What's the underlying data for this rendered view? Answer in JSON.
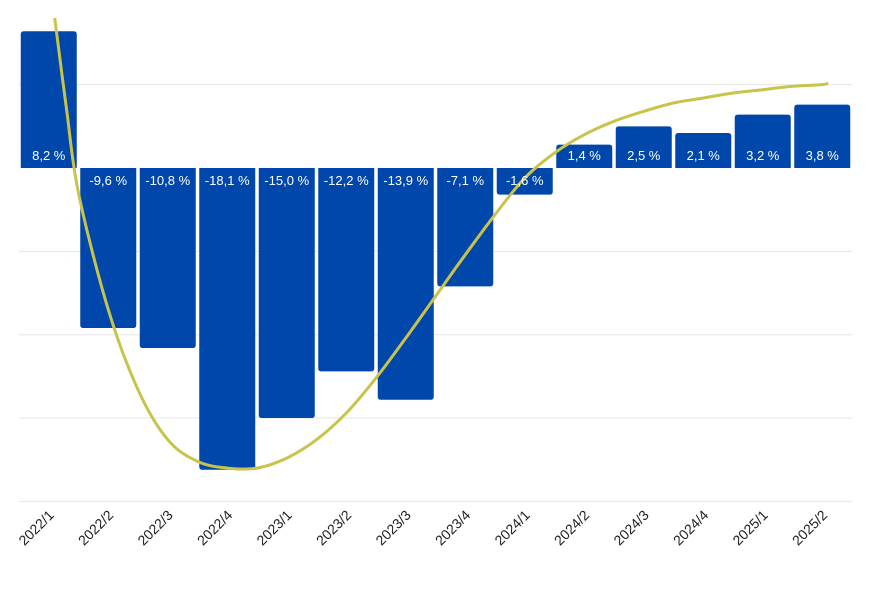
{
  "chart_data": {
    "type": "bar",
    "title": "",
    "xlabel": "",
    "ylabel": "",
    "grid": true,
    "ylim": [
      -20,
      10
    ],
    "gridlines": [
      -20,
      -15,
      -10,
      -5,
      0,
      5
    ],
    "categories": [
      "2022/1",
      "2022/2",
      "2022/3",
      "2022/4",
      "2023/1",
      "2023/2",
      "2023/3",
      "2023/4",
      "2024/1",
      "2024/2",
      "2024/3",
      "2024/4",
      "2025/1",
      "2025/2"
    ],
    "values": [
      8.2,
      -9.6,
      -10.8,
      -18.1,
      -15.0,
      -12.2,
      -13.9,
      -7.1,
      -1.6,
      1.4,
      2.5,
      2.1,
      3.2,
      3.8
    ],
    "data_labels": [
      "8,2 %",
      "-9,6 %",
      "-10,8 %",
      "-18,1 %",
      "-15,0 %",
      "-12,2 %",
      "-13,9 %",
      "-7,1 %",
      "-1,6 %",
      "1,4 %",
      "2,5 %",
      "2,1 %",
      "3,2 %",
      "3,8 %"
    ],
    "trend_line": {
      "x": [
        0.1,
        0.3,
        0.5,
        1.0,
        1.5,
        2.0,
        2.5,
        3.0,
        3.5,
        4.0,
        4.5,
        5.0,
        5.5,
        6.0,
        6.5,
        7.0,
        7.5,
        8.0,
        8.5,
        9.0,
        9.5,
        10.0,
        10.5,
        11.0,
        11.5,
        12.0,
        12.5,
        13.0,
        13.1
      ],
      "y": [
        9.0,
        3.5,
        -1.5,
        -8.5,
        -13.3,
        -16.3,
        -17.6,
        -18.0,
        -18.0,
        -17.4,
        -16.3,
        -14.7,
        -12.6,
        -10.2,
        -7.7,
        -5.2,
        -2.8,
        -0.6,
        0.9,
        2.0,
        2.8,
        3.4,
        3.9,
        4.2,
        4.5,
        4.7,
        4.9,
        5.0,
        5.1
      ]
    },
    "colors": {
      "bar": "#0047ab",
      "trend": "#c8c34a",
      "label_inside": "#ffffff",
      "label_outside": "#222222"
    }
  }
}
